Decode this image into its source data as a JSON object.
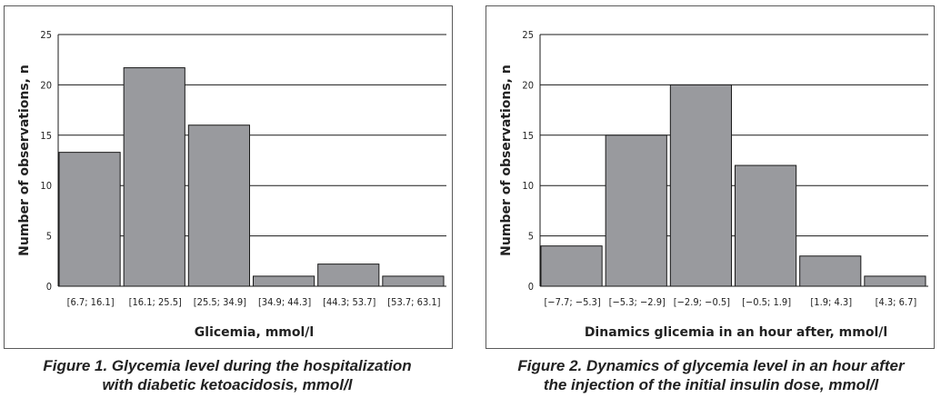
{
  "chart_data": [
    {
      "type": "bar",
      "categories": [
        "[6.7; 16.1]",
        "[16.1; 25.5]",
        "[25.5; 34.9]",
        "[34.9; 44.3]",
        "[44.3; 53.7]",
        "[53.7; 63.1]"
      ],
      "values": [
        13.3,
        21.7,
        16,
        1,
        2.2,
        1
      ],
      "xlabel": "Glicemia, mmol/l",
      "ylabel": "Number of observations, n",
      "ylim": [
        0,
        25
      ],
      "yticks": [
        0,
        5,
        10,
        15,
        20,
        25
      ],
      "grid": true,
      "bar_color": "#999a9e",
      "caption": [
        "Figure 1. Glycemia level during the hospitalization",
        "with diabetic ketoacidosis, mmol/l"
      ]
    },
    {
      "type": "bar",
      "categories": [
        "[−7.7; −5.3]",
        "[−5.3; −2.9]",
        "[−2.9; −0.5]",
        "[−0.5; 1.9]",
        "[1.9; 4.3]",
        "[4.3; 6.7]"
      ],
      "values": [
        4,
        15,
        20,
        12,
        3,
        1
      ],
      "xlabel": "Dinamics glicemia in an hour after, mmol/l",
      "ylabel": "Number of observations, n",
      "ylim": [
        0,
        25
      ],
      "yticks": [
        0,
        5,
        10,
        15,
        20,
        25
      ],
      "grid": true,
      "bar_color": "#999a9e",
      "caption": [
        "Figure 2. Dynamics of glycemia level in an hour after",
        "the injection of the initial insulin dose, mmol/l"
      ]
    }
  ]
}
